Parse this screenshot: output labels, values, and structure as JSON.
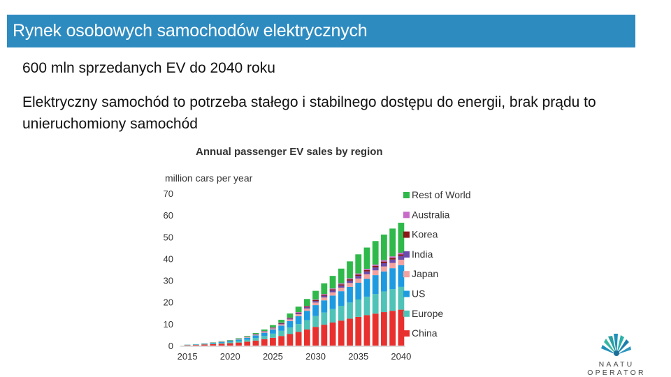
{
  "header": {
    "title": "Rynek osobowych samochodów elektrycznych"
  },
  "body": {
    "line1": "600 mln sprzedanych EV do 2040 roku",
    "paragraph": "Elektryczny samochód to potrzeba stałego i stabilnego dostępu do energii, brak prądu to unieruchomiony samochód"
  },
  "logo": {
    "text": "NAATU OPERATOR",
    "icon": "feather-headdress-icon"
  },
  "chart_data": {
    "type": "bar",
    "stacked": true,
    "title": "Annual passenger EV sales by region",
    "ylabel": "million cars per year",
    "ylim": [
      0,
      70
    ],
    "yticks": [
      0,
      10,
      20,
      30,
      40,
      50,
      60,
      70
    ],
    "xticks": [
      "2015",
      "2020",
      "2025",
      "2030",
      "2035",
      "2040"
    ],
    "grid": false,
    "legend_position": "right",
    "categories": [
      "2015",
      "2016",
      "2017",
      "2018",
      "2019",
      "2020",
      "2021",
      "2022",
      "2023",
      "2024",
      "2025",
      "2026",
      "2027",
      "2028",
      "2029",
      "2030",
      "2031",
      "2032",
      "2033",
      "2034",
      "2035",
      "2036",
      "2037",
      "2038",
      "2039",
      "2040"
    ],
    "series": [
      {
        "name": "China",
        "color": "#e8312f",
        "values": [
          0.2,
          0.3,
          0.5,
          0.7,
          0.9,
          1.1,
          1.4,
          1.8,
          2.3,
          2.9,
          3.6,
          4.4,
          5.3,
          6.3,
          7.4,
          8.6,
          9.6,
          10.6,
          11.5,
          12.4,
          13.2,
          14.0,
          14.7,
          15.4,
          16.0,
          16.5
        ]
      },
      {
        "name": "Europe",
        "color": "#4fc3b7",
        "values": [
          0.1,
          0.15,
          0.2,
          0.3,
          0.4,
          0.5,
          0.7,
          0.9,
          1.2,
          1.5,
          1.9,
          2.4,
          3.0,
          3.6,
          4.3,
          5.0,
          5.6,
          6.2,
          6.8,
          7.4,
          8.0,
          8.5,
          9.0,
          9.5,
          10.0,
          10.5
        ]
      },
      {
        "name": "US",
        "color": "#1e9be0",
        "values": [
          0.1,
          0.15,
          0.2,
          0.3,
          0.4,
          0.5,
          0.7,
          0.9,
          1.2,
          1.5,
          1.9,
          2.4,
          3.0,
          3.6,
          4.3,
          5.0,
          5.6,
          6.2,
          6.7,
          7.2,
          7.7,
          8.2,
          8.7,
          9.2,
          9.6,
          10.0
        ]
      },
      {
        "name": "Japan",
        "color": "#f2a29f",
        "values": [
          0.02,
          0.03,
          0.05,
          0.07,
          0.1,
          0.13,
          0.17,
          0.22,
          0.3,
          0.4,
          0.5,
          0.6,
          0.75,
          0.9,
          1.05,
          1.2,
          1.35,
          1.5,
          1.65,
          1.8,
          1.95,
          2.1,
          2.2,
          2.3,
          2.4,
          2.5
        ]
      },
      {
        "name": "India",
        "color": "#6b4bab",
        "values": [
          0.0,
          0.0,
          0.01,
          0.02,
          0.03,
          0.05,
          0.07,
          0.1,
          0.15,
          0.2,
          0.25,
          0.32,
          0.4,
          0.5,
          0.6,
          0.7,
          0.8,
          0.9,
          1.0,
          1.1,
          1.2,
          1.3,
          1.4,
          1.5,
          1.6,
          1.7
        ]
      },
      {
        "name": "Korea",
        "color": "#8b1818",
        "values": [
          0.0,
          0.0,
          0.01,
          0.02,
          0.03,
          0.04,
          0.05,
          0.07,
          0.09,
          0.12,
          0.15,
          0.19,
          0.23,
          0.28,
          0.33,
          0.38,
          0.43,
          0.48,
          0.53,
          0.58,
          0.62,
          0.66,
          0.7,
          0.74,
          0.77,
          0.8
        ]
      },
      {
        "name": "Australia",
        "color": "#c86ac8",
        "values": [
          0.0,
          0.0,
          0.01,
          0.01,
          0.02,
          0.03,
          0.04,
          0.05,
          0.07,
          0.09,
          0.12,
          0.15,
          0.18,
          0.22,
          0.26,
          0.3,
          0.34,
          0.38,
          0.42,
          0.46,
          0.5,
          0.54,
          0.58,
          0.62,
          0.66,
          0.7
        ]
      },
      {
        "name": "Rest of World",
        "color": "#2fb94a",
        "values": [
          0.03,
          0.05,
          0.07,
          0.1,
          0.15,
          0.2,
          0.27,
          0.35,
          0.5,
          0.7,
          1.0,
          1.4,
          1.9,
          2.5,
          3.2,
          4.0,
          4.9,
          5.8,
          6.8,
          7.8,
          8.8,
          9.8,
          10.8,
          11.8,
          12.8,
          13.8
        ]
      }
    ]
  }
}
